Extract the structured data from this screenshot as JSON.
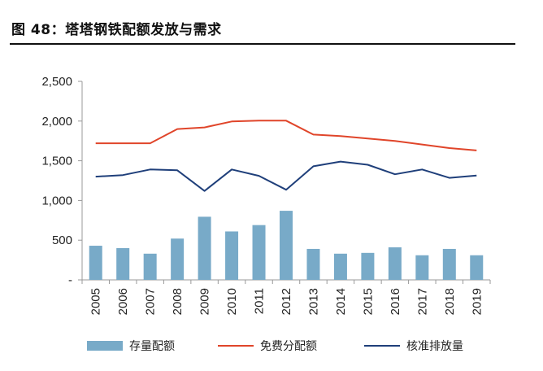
{
  "figure": {
    "title": "图 48：塔塔钢铁配额发放与需求"
  },
  "chart_data": {
    "type": "bar",
    "title": "图 48：塔塔钢铁配额发放与需求",
    "categories": [
      "2005",
      "2006",
      "2007",
      "2008",
      "2009",
      "2010",
      "2011",
      "2012",
      "2013",
      "2014",
      "2015",
      "2016",
      "2017",
      "2018",
      "2019"
    ],
    "ylim": [
      0,
      2500
    ],
    "yticks": [
      0,
      500,
      1000,
      1500,
      2000,
      2500
    ],
    "ytick_labels": [
      "-",
      "500",
      "1,000",
      "1,500",
      "2,000",
      "2,500"
    ],
    "grid": false,
    "legend_position": "bottom",
    "series": [
      {
        "name": "存量配额",
        "kind": "bar",
        "color": "#78aac8",
        "values": [
          430,
          400,
          330,
          520,
          795,
          610,
          690,
          870,
          390,
          330,
          340,
          410,
          310,
          390,
          310
        ]
      },
      {
        "name": "免费分配额",
        "kind": "line",
        "color": "#e0452a",
        "values": [
          1720,
          1720,
          1720,
          1900,
          1920,
          1995,
          2005,
          2005,
          1830,
          1810,
          1780,
          1750,
          1705,
          1660,
          1630
        ]
      },
      {
        "name": "核准排放量",
        "kind": "line",
        "color": "#1f3f7a",
        "values": [
          1300,
          1320,
          1390,
          1380,
          1120,
          1390,
          1310,
          1135,
          1430,
          1490,
          1450,
          1330,
          1390,
          1285,
          1315
        ]
      }
    ]
  }
}
